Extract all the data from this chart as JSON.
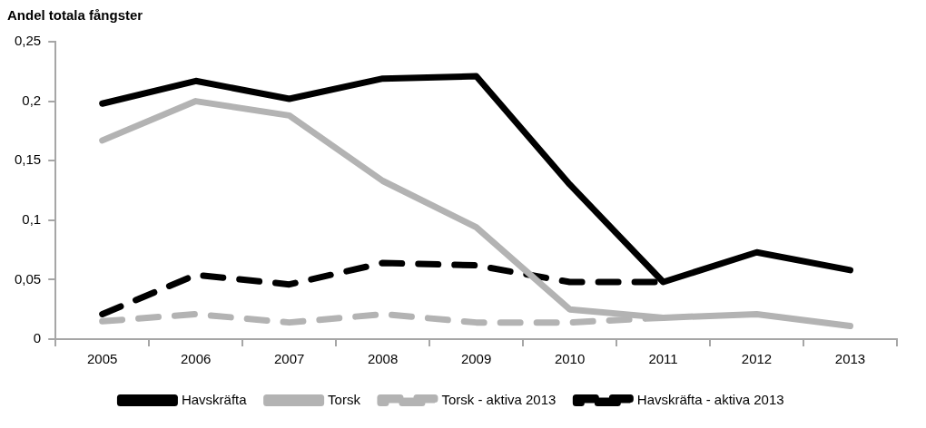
{
  "chart_data": {
    "type": "line",
    "ylabel": "Andel totala fångster",
    "categories": [
      "2005",
      "2006",
      "2007",
      "2008",
      "2009",
      "2010",
      "2011",
      "2012",
      "2013"
    ],
    "series": [
      {
        "name": "Havskräfta",
        "color": "#000000",
        "values": [
          0.198,
          0.217,
          0.202,
          0.219,
          0.221,
          0.13,
          0.048,
          0.073,
          0.058
        ]
      },
      {
        "name": "Torsk",
        "color": "#b3b3b3",
        "values": [
          0.167,
          0.2,
          0.188,
          0.133,
          0.094,
          0.025,
          0.018,
          0.021,
          0.011
        ]
      },
      {
        "name": "Torsk - aktiva 2013",
        "color": "#b3b3b3",
        "line_style": "dashed",
        "values": [
          0.015,
          0.021,
          0.014,
          0.021,
          0.014,
          0.014,
          0.018,
          null,
          null
        ]
      },
      {
        "name": "Havskräfta - aktiva 2013",
        "color": "#000000",
        "line_style": "dashed",
        "values": [
          0.021,
          0.054,
          0.046,
          0.064,
          0.062,
          0.048,
          0.048,
          null,
          null
        ]
      }
    ],
    "ylim": [
      0,
      0.25
    ],
    "yticks": [
      {
        "value": 0,
        "label": "0"
      },
      {
        "value": 0.05,
        "label": "0,05"
      },
      {
        "value": 0.1,
        "label": "0,1"
      },
      {
        "value": 0.15,
        "label": "0,15"
      },
      {
        "value": 0.2,
        "label": "0,2"
      },
      {
        "value": 0.25,
        "label": "0,25"
      }
    ],
    "grid": false,
    "legend": "bottom",
    "marker": "none"
  }
}
